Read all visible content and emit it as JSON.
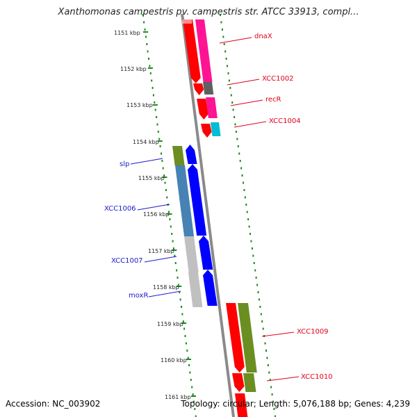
{
  "header": {
    "title": "Xanthomonas campestris pv. campestris str. ATCC 33913, compl..."
  },
  "footer": {
    "accession": "Accession: NC_003902",
    "topology": "Topology: circular; Length: 5,076,188 bp; Genes: 4,239"
  },
  "scale_labels": [
    "1151 kbp",
    "1152 kbp",
    "1153 kbp",
    "1154 kbp",
    "1155 kbp",
    "1156 kbp",
    "1157 kbp",
    "1158 kbp",
    "1159 kbp",
    "1160 kbp",
    "1161 kbp"
  ],
  "genes": {
    "forward": [
      {
        "label": "dnaX",
        "color": "#e0001a"
      },
      {
        "label": "XCC1002",
        "color": "#e0001a"
      },
      {
        "label": "recR",
        "color": "#e0001a"
      },
      {
        "label": "XCC1004",
        "color": "#e0001a"
      },
      {
        "label": "XCC1009",
        "color": "#e0001a"
      },
      {
        "label": "XCC1010",
        "color": "#e0001a"
      }
    ],
    "reverse": [
      {
        "label": "slp",
        "color": "#1a1acc"
      },
      {
        "label": "XCC1006",
        "color": "#1a1acc"
      },
      {
        "label": "XCC1007",
        "color": "#1a1acc"
      },
      {
        "label": "moxR",
        "color": "#1a1acc"
      }
    ]
  },
  "colors": {
    "forward_gene": "#ff0000",
    "reverse_gene": "#0000ff",
    "cds_pink": "#ff1493",
    "cds_green": "#6b8e23",
    "cds_steelblue": "#4682b4",
    "cds_grey": "#c0c0c0",
    "cds_darkgrey": "#606060",
    "cds_cyan": "#00bcd4",
    "backbone": "#808080",
    "scale_ticks": "#1a8a1a"
  }
}
